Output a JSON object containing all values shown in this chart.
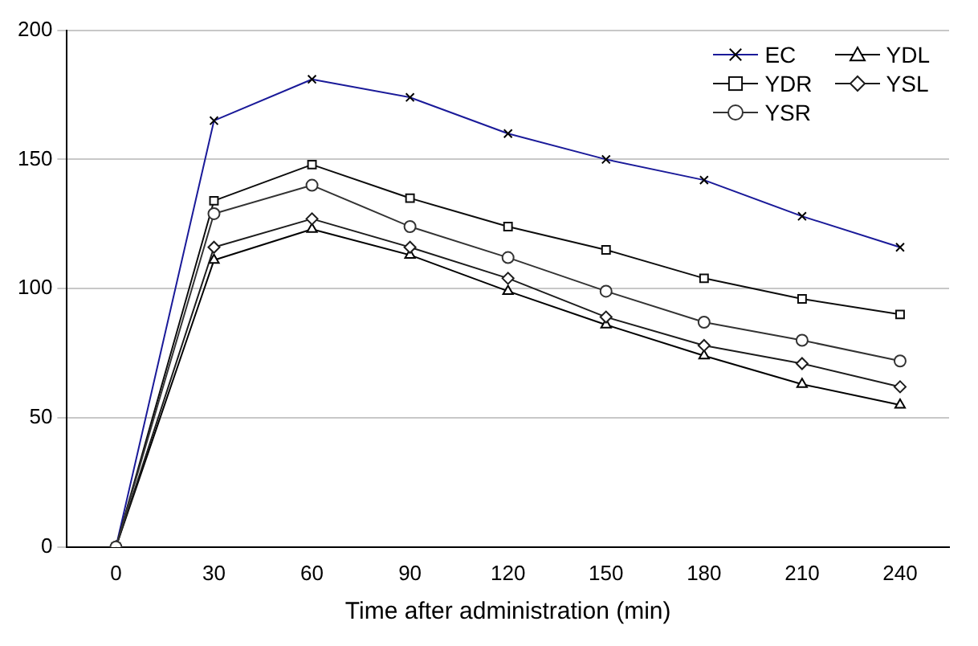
{
  "chart_data": {
    "type": "line",
    "xlabel": "Time after administration (min)",
    "categories": [
      "0",
      "30",
      "60",
      "90",
      "120",
      "150",
      "180",
      "210",
      "240"
    ],
    "series": [
      {
        "name": "EC",
        "color": "#1a1a99",
        "marker": "cross",
        "values": [
          0,
          165,
          181,
          174,
          160,
          150,
          142,
          128,
          116
        ]
      },
      {
        "name": "YDL",
        "color": "#000000",
        "marker": "triangle",
        "values": [
          0,
          111,
          123,
          113,
          99,
          86,
          74,
          63,
          55
        ]
      },
      {
        "name": "YDR",
        "color": "#0c0c0c",
        "marker": "square",
        "values": [
          0,
          134,
          148,
          135,
          124,
          115,
          104,
          96,
          90
        ]
      },
      {
        "name": "YSL",
        "color": "#1c1c1c",
        "marker": "diamond",
        "values": [
          0,
          116,
          127,
          116,
          104,
          89,
          78,
          71,
          62
        ]
      },
      {
        "name": "YSR",
        "color": "#333333",
        "marker": "circle",
        "values": [
          0,
          129,
          140,
          124,
          112,
          99,
          87,
          80,
          72
        ]
      }
    ],
    "ylim": [
      0,
      200
    ],
    "yticks": [
      0,
      50,
      100,
      150,
      200
    ],
    "grid": "y",
    "legend": "top right",
    "line_style": "solid"
  }
}
